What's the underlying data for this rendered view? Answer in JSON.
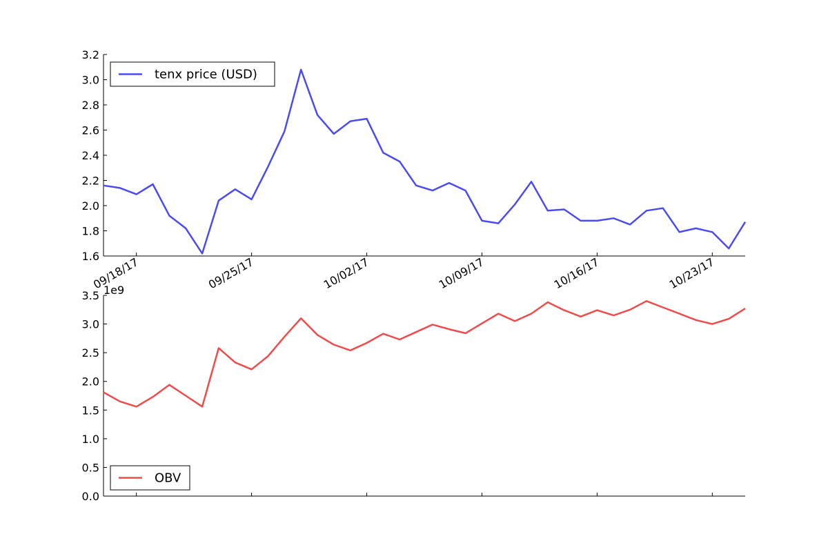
{
  "chart_data": [
    {
      "type": "line",
      "title": "",
      "xlabel": "",
      "ylabel": "",
      "ylim": [
        1.6,
        3.2
      ],
      "yticks": [
        1.6,
        1.8,
        2.0,
        2.2,
        2.4,
        2.6,
        2.8,
        3.0,
        3.2
      ],
      "ytick_labels": [
        "1.6",
        "1.8",
        "2.0",
        "2.2",
        "2.4",
        "2.6",
        "2.8",
        "3.0",
        "3.2"
      ],
      "x_range": [
        "2017-09-16",
        "2017-10-25"
      ],
      "xticks": [
        "2017-09-18",
        "2017-09-25",
        "2017-10-02",
        "2017-10-09",
        "2017-10-16",
        "2017-10-23"
      ],
      "xtick_labels": [
        "09/18/17",
        "09/25/17",
        "10/02/17",
        "10/09/17",
        "10/16/17",
        "10/23/17"
      ],
      "legend": "top-left",
      "grid": false,
      "x": [
        "2017-09-16",
        "2017-09-17",
        "2017-09-18",
        "2017-09-19",
        "2017-09-20",
        "2017-09-21",
        "2017-09-22",
        "2017-09-23",
        "2017-09-24",
        "2017-09-25",
        "2017-09-26",
        "2017-09-27",
        "2017-09-28",
        "2017-09-29",
        "2017-09-30",
        "2017-10-01",
        "2017-10-02",
        "2017-10-03",
        "2017-10-04",
        "2017-10-05",
        "2017-10-06",
        "2017-10-07",
        "2017-10-08",
        "2017-10-09",
        "2017-10-10",
        "2017-10-11",
        "2017-10-12",
        "2017-10-13",
        "2017-10-14",
        "2017-10-15",
        "2017-10-16",
        "2017-10-17",
        "2017-10-18",
        "2017-10-19",
        "2017-10-20",
        "2017-10-21",
        "2017-10-22",
        "2017-10-23",
        "2017-10-24",
        "2017-10-25"
      ],
      "series": [
        {
          "name": "tenx price (USD)",
          "color": "#4a4af5",
          "values": [
            2.16,
            2.14,
            2.09,
            2.17,
            1.92,
            1.82,
            1.62,
            2.04,
            2.13,
            2.05,
            2.31,
            2.59,
            3.08,
            2.72,
            2.57,
            2.67,
            2.69,
            2.42,
            2.35,
            2.16,
            2.12,
            2.18,
            2.12,
            1.88,
            1.86,
            2.01,
            2.19,
            1.96,
            1.97,
            1.88,
            1.88,
            1.9,
            1.85,
            1.96,
            1.98,
            1.79,
            1.82,
            1.79,
            1.66,
            1.87
          ]
        }
      ]
    },
    {
      "type": "line",
      "title": "",
      "xlabel": "",
      "ylabel": "",
      "offset_label": "1e9",
      "ylim": [
        0.0,
        3.5
      ],
      "yticks": [
        0.0,
        0.5,
        1.0,
        1.5,
        2.0,
        2.5,
        3.0,
        3.5
      ],
      "ytick_labels": [
        "0.0",
        "0.5",
        "1.0",
        "1.5",
        "2.0",
        "2.5",
        "3.0",
        "3.5"
      ],
      "x_range": [
        "2017-09-16",
        "2017-10-25"
      ],
      "legend": "bottom-left",
      "grid": false,
      "x": [
        "2017-09-16",
        "2017-09-17",
        "2017-09-18",
        "2017-09-19",
        "2017-09-20",
        "2017-09-21",
        "2017-09-22",
        "2017-09-23",
        "2017-09-24",
        "2017-09-25",
        "2017-09-26",
        "2017-09-27",
        "2017-09-28",
        "2017-09-29",
        "2017-09-30",
        "2017-10-01",
        "2017-10-02",
        "2017-10-03",
        "2017-10-04",
        "2017-10-05",
        "2017-10-06",
        "2017-10-07",
        "2017-10-08",
        "2017-10-09",
        "2017-10-10",
        "2017-10-11",
        "2017-10-12",
        "2017-10-13",
        "2017-10-14",
        "2017-10-15",
        "2017-10-16",
        "2017-10-17",
        "2017-10-18",
        "2017-10-19",
        "2017-10-20",
        "2017-10-21",
        "2017-10-22",
        "2017-10-23",
        "2017-10-24",
        "2017-10-25"
      ],
      "series": [
        {
          "name": "OBV",
          "color": "#f04a4a",
          "values": [
            1.81,
            1.65,
            1.56,
            1.73,
            1.94,
            1.75,
            1.56,
            2.58,
            2.33,
            2.21,
            2.44,
            2.78,
            3.1,
            2.81,
            2.64,
            2.54,
            2.67,
            2.83,
            2.73,
            2.86,
            2.99,
            2.91,
            2.84,
            3.01,
            3.18,
            3.05,
            3.18,
            3.38,
            3.24,
            3.13,
            3.24,
            3.15,
            3.25,
            3.4,
            3.29,
            3.18,
            3.07,
            3.0,
            3.09,
            3.27
          ]
        }
      ]
    }
  ]
}
